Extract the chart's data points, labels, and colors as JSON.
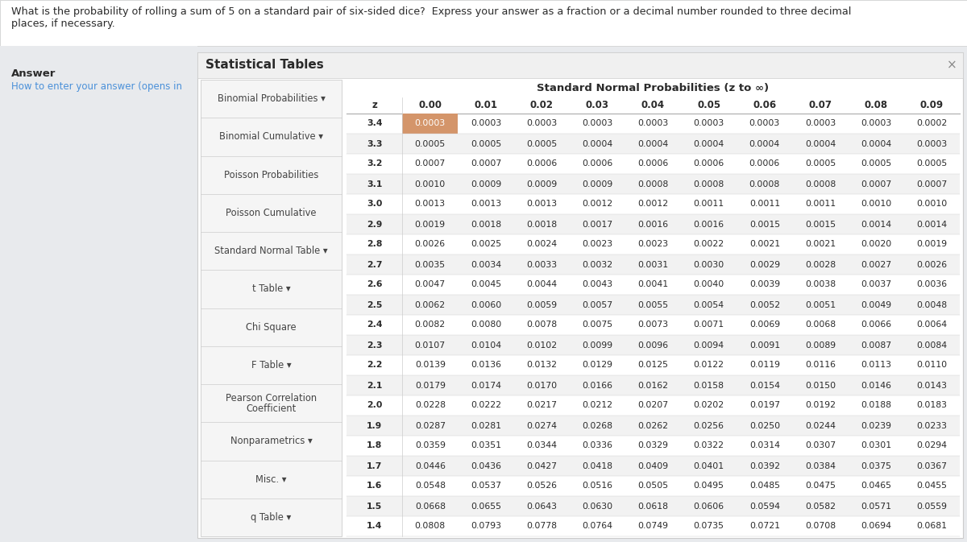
{
  "question_text": "What is the probability of rolling a sum of 5 on a standard pair of six-sided dice?  Express your answer as a fraction or a decimal number rounded to three decimal\nplaces, if necessary.",
  "answer_label": "Answer",
  "answer_sub": "How to enter your answer (opens in",
  "stat_tables_title": "Statistical Tables",
  "close_x": "×",
  "left_menu": [
    "Binomial Probabilities ▾",
    "Binomial Cumulative ▾",
    "Poisson Probabilities",
    "Poisson Cumulative",
    "Standard Normal Table ▾",
    "t Table ▾",
    "Chi Square",
    "F Table ▾",
    "Pearson Correlation\nCoefficient",
    "Nonparametrics ▾",
    "Misc. ▾",
    "q Table ▾"
  ],
  "table_title": "Standard Normal Probabilities (z to ∞)",
  "col_headers": [
    "z",
    "0.00",
    "0.01",
    "0.02",
    "0.03",
    "0.04",
    "0.05",
    "0.06",
    "0.07",
    "0.08",
    "0.09"
  ],
  "rows": [
    [
      "3.4",
      "0.0003",
      "0.0003",
      "0.0003",
      "0.0003",
      "0.0003",
      "0.0003",
      "0.0003",
      "0.0003",
      "0.0003",
      "0.0002"
    ],
    [
      "3.3",
      "0.0005",
      "0.0005",
      "0.0005",
      "0.0004",
      "0.0004",
      "0.0004",
      "0.0004",
      "0.0004",
      "0.0004",
      "0.0003"
    ],
    [
      "3.2",
      "0.0007",
      "0.0007",
      "0.0006",
      "0.0006",
      "0.0006",
      "0.0006",
      "0.0006",
      "0.0005",
      "0.0005",
      "0.0005"
    ],
    [
      "3.1",
      "0.0010",
      "0.0009",
      "0.0009",
      "0.0009",
      "0.0008",
      "0.0008",
      "0.0008",
      "0.0008",
      "0.0007",
      "0.0007"
    ],
    [
      "3.0",
      "0.0013",
      "0.0013",
      "0.0013",
      "0.0012",
      "0.0012",
      "0.0011",
      "0.0011",
      "0.0011",
      "0.0010",
      "0.0010"
    ],
    [
      "2.9",
      "0.0019",
      "0.0018",
      "0.0018",
      "0.0017",
      "0.0016",
      "0.0016",
      "0.0015",
      "0.0015",
      "0.0014",
      "0.0014"
    ],
    [
      "2.8",
      "0.0026",
      "0.0025",
      "0.0024",
      "0.0023",
      "0.0023",
      "0.0022",
      "0.0021",
      "0.0021",
      "0.0020",
      "0.0019"
    ],
    [
      "2.7",
      "0.0035",
      "0.0034",
      "0.0033",
      "0.0032",
      "0.0031",
      "0.0030",
      "0.0029",
      "0.0028",
      "0.0027",
      "0.0026"
    ],
    [
      "2.6",
      "0.0047",
      "0.0045",
      "0.0044",
      "0.0043",
      "0.0041",
      "0.0040",
      "0.0039",
      "0.0038",
      "0.0037",
      "0.0036"
    ],
    [
      "2.5",
      "0.0062",
      "0.0060",
      "0.0059",
      "0.0057",
      "0.0055",
      "0.0054",
      "0.0052",
      "0.0051",
      "0.0049",
      "0.0048"
    ],
    [
      "2.4",
      "0.0082",
      "0.0080",
      "0.0078",
      "0.0075",
      "0.0073",
      "0.0071",
      "0.0069",
      "0.0068",
      "0.0066",
      "0.0064"
    ],
    [
      "2.3",
      "0.0107",
      "0.0104",
      "0.0102",
      "0.0099",
      "0.0096",
      "0.0094",
      "0.0091",
      "0.0089",
      "0.0087",
      "0.0084"
    ],
    [
      "2.2",
      "0.0139",
      "0.0136",
      "0.0132",
      "0.0129",
      "0.0125",
      "0.0122",
      "0.0119",
      "0.0116",
      "0.0113",
      "0.0110"
    ],
    [
      "2.1",
      "0.0179",
      "0.0174",
      "0.0170",
      "0.0166",
      "0.0162",
      "0.0158",
      "0.0154",
      "0.0150",
      "0.0146",
      "0.0143"
    ],
    [
      "2.0",
      "0.0228",
      "0.0222",
      "0.0217",
      "0.0212",
      "0.0207",
      "0.0202",
      "0.0197",
      "0.0192",
      "0.0188",
      "0.0183"
    ],
    [
      "1.9",
      "0.0287",
      "0.0281",
      "0.0274",
      "0.0268",
      "0.0262",
      "0.0256",
      "0.0250",
      "0.0244",
      "0.0239",
      "0.0233"
    ],
    [
      "1.8",
      "0.0359",
      "0.0351",
      "0.0344",
      "0.0336",
      "0.0329",
      "0.0322",
      "0.0314",
      "0.0307",
      "0.0301",
      "0.0294"
    ],
    [
      "1.7",
      "0.0446",
      "0.0436",
      "0.0427",
      "0.0418",
      "0.0409",
      "0.0401",
      "0.0392",
      "0.0384",
      "0.0375",
      "0.0367"
    ],
    [
      "1.6",
      "0.0548",
      "0.0537",
      "0.0526",
      "0.0516",
      "0.0505",
      "0.0495",
      "0.0485",
      "0.0475",
      "0.0465",
      "0.0455"
    ],
    [
      "1.5",
      "0.0668",
      "0.0655",
      "0.0643",
      "0.0630",
      "0.0618",
      "0.0606",
      "0.0594",
      "0.0582",
      "0.0571",
      "0.0559"
    ],
    [
      "1.4",
      "0.0808",
      "0.0793",
      "0.0778",
      "0.0764",
      "0.0749",
      "0.0735",
      "0.0721",
      "0.0708",
      "0.0694",
      "0.0681"
    ]
  ],
  "highlight_row": 0,
  "highlight_col": 1,
  "bg_outer": "#dde0e5",
  "bg_page": "#e8eaed",
  "panel_bg": "#ffffff",
  "header_bar_bg": "#f0f0f0",
  "menu_bg": "#f5f5f5",
  "highlight_cell_color": "#d4956a",
  "border_color": "#cccccc",
  "text_color": "#2a2a2a",
  "blue_link_color": "#4a90d9",
  "menu_text_color": "#444444",
  "table_alt_row": "#f2f2f2"
}
